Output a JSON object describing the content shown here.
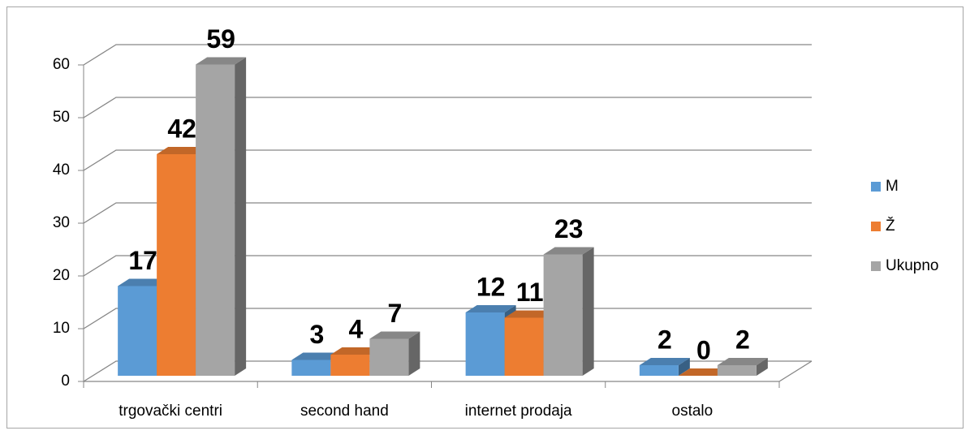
{
  "chart_data": {
    "type": "bar3d",
    "categories": [
      "trgovački centri",
      "second hand",
      "internet prodaja",
      "ostalo"
    ],
    "series": [
      {
        "name": "M",
        "color": "#5b9bd5",
        "values": [
          17,
          3,
          12,
          2
        ]
      },
      {
        "name": "Ž",
        "color": "#ed7d31",
        "values": [
          42,
          4,
          11,
          0
        ]
      },
      {
        "name": "Ukupno",
        "color": "#a5a5a5",
        "values": [
          59,
          7,
          23,
          2
        ]
      }
    ],
    "ylim": [
      0,
      60
    ],
    "yticks": [
      0,
      10,
      20,
      30,
      40,
      50,
      60
    ],
    "grid": true,
    "legend": "right"
  }
}
